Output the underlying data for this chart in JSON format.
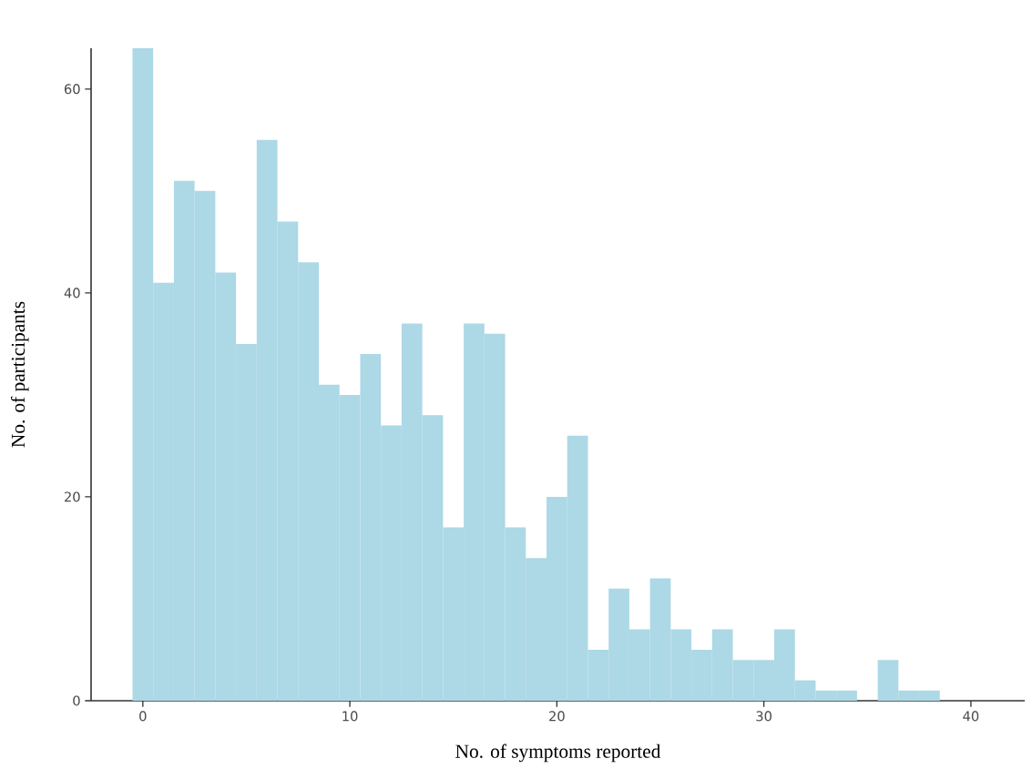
{
  "chart_data": {
    "type": "histogram",
    "xlabel": "No. of symptoms reported",
    "ylabel": "No. of participants",
    "bins": [
      -0.5,
      0.5,
      1.5,
      2.5,
      3.5,
      4.5,
      5.5,
      6.5,
      7.5,
      8.5,
      9.5,
      10.5,
      11.5,
      12.5,
      13.5,
      14.5,
      15.5,
      16.5,
      17.5,
      18.5,
      19.5,
      20.5,
      21.5,
      22.5,
      23.5,
      24.5,
      25.5,
      26.5,
      27.5,
      28.5,
      29.5,
      30.5,
      31.5,
      32.5,
      33.5,
      34.5,
      35.5,
      36.5,
      37.5,
      38.5
    ],
    "values": [
      64,
      41,
      51,
      50,
      42,
      35,
      55,
      47,
      43,
      31,
      30,
      34,
      27,
      37,
      28,
      17,
      37,
      36,
      17,
      14,
      20,
      26,
      5,
      11,
      7,
      12,
      7,
      5,
      7,
      4,
      4,
      7,
      2,
      1,
      1,
      0,
      4,
      1,
      1
    ],
    "color": "#add8e6",
    "xlim": [
      -2.5,
      42.6
    ],
    "ylim": [
      0,
      64
    ],
    "xticks": [
      0,
      10,
      20,
      30,
      40
    ],
    "yticks": [
      0,
      20,
      40,
      60
    ],
    "grid": false
  }
}
